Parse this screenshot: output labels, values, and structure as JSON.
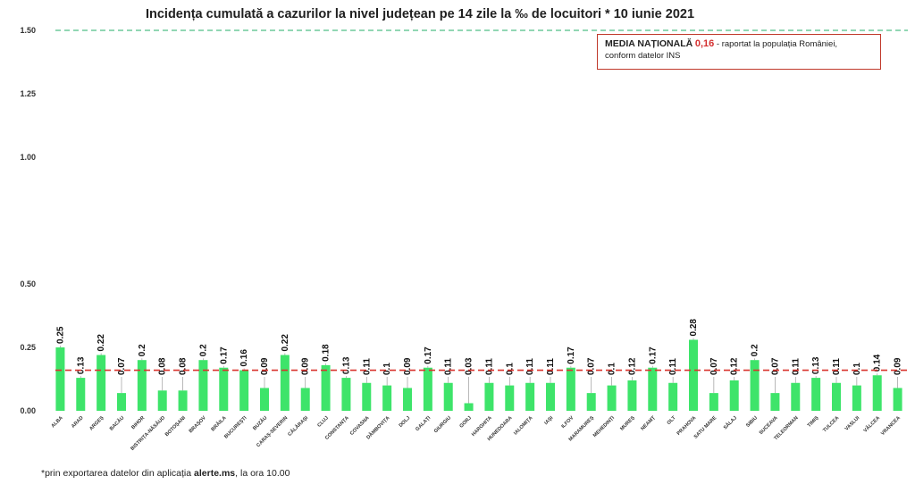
{
  "colors": {
    "bar": "#3ee46a",
    "reference_line": "#4fbf88",
    "national_mean_line": "#d9322c",
    "legend_border": "#c0392b",
    "legend_value": "#d32f2f"
  },
  "legend": {
    "heading": "MEDIA NAȚIONALĂ",
    "value": "0,16",
    "text_line1": "- raportat la populația României,",
    "text_line2": "conform datelor INS"
  },
  "footnote": {
    "prefix": "*prin exportarea datelor din aplicația",
    "app": "alerte.ms",
    "suffix": ", la ora 10.00"
  },
  "chart_data": {
    "type": "bar",
    "title": "Incidența cumulată a cazurilor la nivel județean pe 14 zile la ‰ de locuitori *  10 iunie 2021",
    "xlabel": "",
    "ylabel": "",
    "ylim": [
      0,
      1.5
    ],
    "yticks": [
      "0.00",
      "0.25",
      "0.50",
      "1.00",
      "1.25",
      "1.50"
    ],
    "ytick_values": [
      0,
      0.25,
      0.5,
      1.0,
      1.25,
      1.5
    ],
    "reference_line": 1.5,
    "national_mean": 0.16,
    "grid": false,
    "legend_position": "top-right",
    "categories": [
      "ALBA",
      "ARAD",
      "ARGEȘ",
      "BACĂU",
      "BIHOR",
      "BISTRIȚA-NĂSĂUD",
      "BOTOȘANI",
      "BRAȘOV",
      "BRĂILA",
      "BUCUREȘTI",
      "BUZĂU",
      "CARAȘ-SEVERIN",
      "CĂLĂRAȘI",
      "CLUJ",
      "CONSTANȚA",
      "COVASNA",
      "DÂMBOVIȚA",
      "DOLJ",
      "GALAȚI",
      "GIURGIU",
      "GORJ",
      "HARGHITA",
      "HUNEDOARA",
      "IALOMIȚA",
      "IAȘI",
      "ILFOV",
      "MARAMUREȘ",
      "MEHEDINȚI",
      "MUREȘ",
      "NEAMȚ",
      "OLT",
      "PRAHOVA",
      "SATU MARE",
      "SĂLAJ",
      "SIBIU",
      "SUCEAVA",
      "TELEORMAN",
      "TIMIȘ",
      "TULCEA",
      "VASLUI",
      "VÂLCEA",
      "VRANCEA"
    ],
    "values": [
      0.25,
      0.13,
      0.22,
      0.07,
      0.2,
      0.08,
      0.08,
      0.2,
      0.17,
      0.16,
      0.09,
      0.22,
      0.09,
      0.18,
      0.13,
      0.11,
      0.1,
      0.09,
      0.17,
      0.11,
      0.03,
      0.11,
      0.1,
      0.11,
      0.11,
      0.17,
      0.07,
      0.1,
      0.12,
      0.17,
      0.11,
      0.28,
      0.07,
      0.12,
      0.2,
      0.07,
      0.11,
      0.13,
      0.11,
      0.1,
      0.14,
      0.09
    ],
    "data_labels": [
      "0.25",
      "0.13",
      "0.22",
      "0.07",
      "0.2",
      "0.08",
      "0.08",
      "0.2",
      "0.17",
      "0.16",
      "0.09",
      "0.22",
      "0.09",
      "0.18",
      "0.13",
      "0.11",
      "0.1",
      "0.09",
      "0.17",
      "0.11",
      "0.03",
      "0.11",
      "0.1",
      "0.11",
      "0.11",
      "0.17",
      "0.07",
      "0.1",
      "0.12",
      "0.17",
      "0.11",
      "0.28",
      "0.07",
      "0.12",
      "0.2",
      "0.07",
      "0.11",
      "0.13",
      "0.11",
      "0.1",
      "0.14",
      "0.09"
    ]
  }
}
